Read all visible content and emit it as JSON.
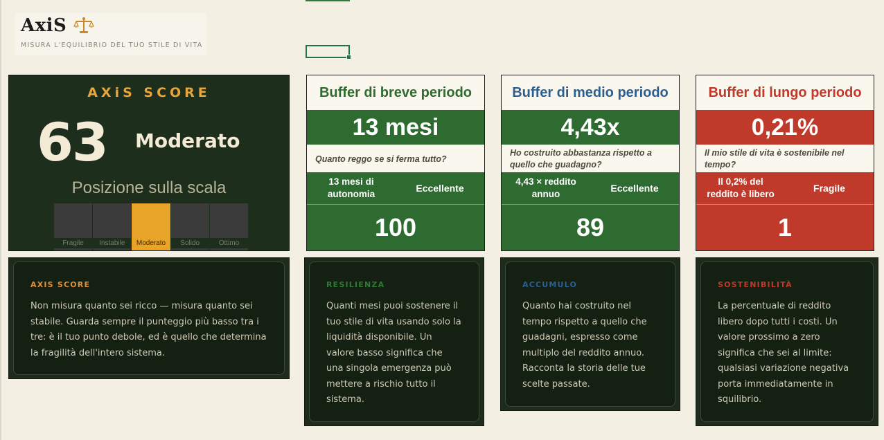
{
  "brand": {
    "name": "AxiS",
    "tagline": "MISURA L'EQUILIBRIO DEL TUO STILE DI VITA",
    "icon": "scale-icon"
  },
  "score_card": {
    "title": "AXiS SCORE",
    "value": "63",
    "level": "Moderato",
    "scale_title": "Posizione sulla scala",
    "scale": [
      {
        "label": "Fragile",
        "active": false
      },
      {
        "label": "Instabile",
        "active": false
      },
      {
        "label": "Moderato",
        "active": true
      },
      {
        "label": "Solido",
        "active": false
      },
      {
        "label": "Ottimo",
        "active": false
      }
    ]
  },
  "buffers": [
    {
      "title": "Buffer di breve periodo",
      "value": "13 mesi",
      "question": "Quanto reggo se si ferma tutto?",
      "detail": "13 mesi di autonomia",
      "rating": "Eccellente",
      "score": "100",
      "title_color": "#2f6b2e",
      "status_color": "#2e6b30"
    },
    {
      "title": "Buffer di medio periodo",
      "value": "4,43x",
      "question": "Ho costruito abbastanza rispetto a quello che guadagno?",
      "detail": "4,43 × reddito annuo",
      "rating": "Eccellente",
      "score": "89",
      "title_color": "#2c5f8f",
      "status_color": "#2e6b30"
    },
    {
      "title": "Buffer di lungo periodo",
      "value": "0,21%",
      "question": "Il mio stile di vita è sostenibile nel tempo?",
      "detail": "Il 0,2% del reddito è libero",
      "rating": "Fragile",
      "score": "1",
      "title_color": "#c0392b",
      "status_color": "#c03a2b"
    }
  ],
  "explainers": [
    {
      "heading": "AXIS SCORE",
      "heading_color": "#e0913a",
      "body": "Non misura quanto sei ricco — misura quanto sei stabile. Guarda sempre il punteggio più basso tra i tre: è il tuo punto debole, ed è quello che determina la fragilità dell'intero sistema."
    },
    {
      "heading": "RESILIENZA",
      "heading_color": "#2f7a35",
      "body": "Quanti mesi puoi sostenere il tuo stile di vita usando solo la liquidità disponibile. Un valore basso significa che una singola emergenza può mettere a rischio tutto il sistema."
    },
    {
      "heading": "ACCUMULO",
      "heading_color": "#2d5f95",
      "body": "Quanto hai costruito nel tempo rispetto a quello che guadagni, espresso come multiplo del reddito annuo. Racconta la storia delle tue scelte passate."
    },
    {
      "heading": "SOSTENIBILITÀ",
      "heading_color": "#c0392b",
      "body": "La percentuale di reddito libero dopo tutti i costi. Un valore prossimo a zero significa che sei al limite: qualsiasi variazione negativa porta immediatamente in squilibrio."
    }
  ]
}
